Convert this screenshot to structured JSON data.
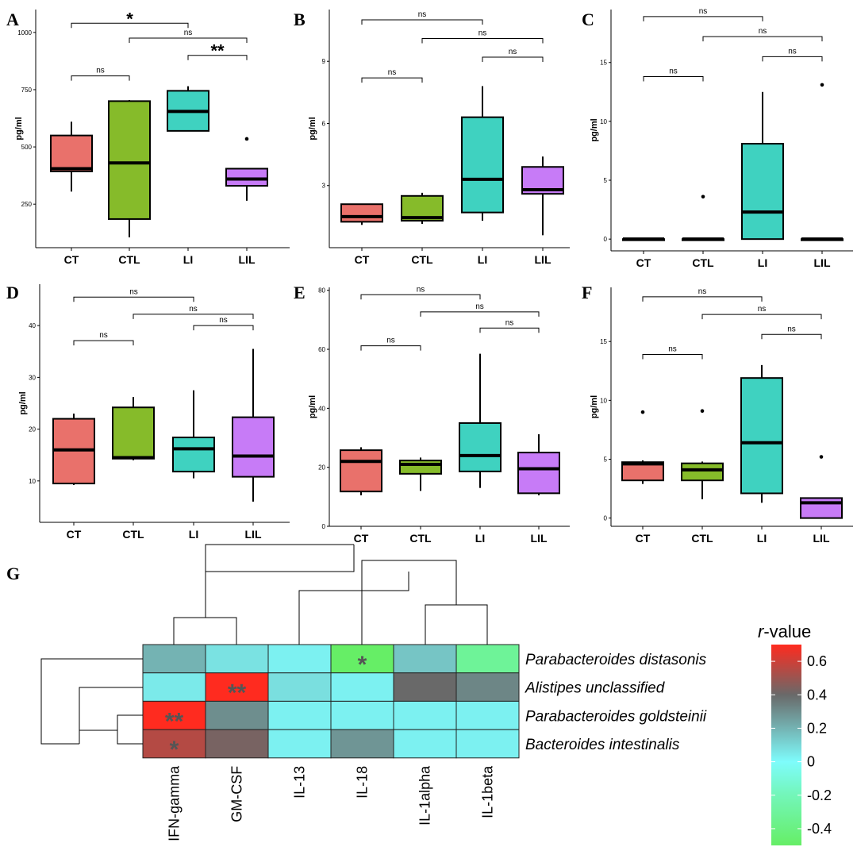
{
  "chart_data": [
    {
      "panel": "A",
      "type": "box",
      "ylabel": "pg/ml",
      "categories": [
        "CT",
        "CTL",
        "LI",
        "LIL"
      ],
      "yticks": [
        250,
        500,
        750,
        1000
      ],
      "ylim": [
        60,
        1100
      ],
      "boxes": [
        {
          "min": 305,
          "q1": 393,
          "median": 405,
          "q3": 550,
          "max": 610,
          "outliers": []
        },
        {
          "min": 105,
          "q1": 185,
          "median": 430,
          "q3": 700,
          "max": 705,
          "outliers": []
        },
        {
          "min": 570,
          "q1": 570,
          "median": 655,
          "q3": 745,
          "max": 765,
          "outliers": []
        },
        {
          "min": 265,
          "q1": 330,
          "median": 360,
          "q3": 405,
          "max": 405,
          "outliers": [
            535
          ]
        }
      ],
      "comparisons": [
        {
          "a": 0,
          "b": 2,
          "label": "*",
          "y": 1040
        },
        {
          "a": 1,
          "b": 3,
          "label": "ns",
          "y": 975
        },
        {
          "a": 2,
          "b": 3,
          "label": "**",
          "y": 900
        },
        {
          "a": 0,
          "b": 1,
          "label": "ns",
          "y": 810
        }
      ]
    },
    {
      "panel": "B",
      "type": "box",
      "ylabel": "pg/ml",
      "categories": [
        "CT",
        "CTL",
        "LI",
        "LIL"
      ],
      "yticks": [
        3,
        6,
        9
      ],
      "ylim": [
        0,
        11.5
      ],
      "boxes": [
        {
          "min": 1.1,
          "q1": 1.25,
          "median": 1.5,
          "q3": 2.1,
          "max": 2.1,
          "outliers": []
        },
        {
          "min": 1.15,
          "q1": 1.3,
          "median": 1.45,
          "q3": 2.5,
          "max": 2.65,
          "outliers": []
        },
        {
          "min": 1.3,
          "q1": 1.7,
          "median": 3.3,
          "q3": 6.3,
          "max": 7.8,
          "outliers": []
        },
        {
          "min": 0.6,
          "q1": 2.6,
          "median": 2.8,
          "q3": 3.9,
          "max": 4.4,
          "outliers": []
        }
      ],
      "comparisons": [
        {
          "a": 0,
          "b": 2,
          "label": "ns",
          "y": 11.0
        },
        {
          "a": 1,
          "b": 3,
          "label": "ns",
          "y": 10.1
        },
        {
          "a": 2,
          "b": 3,
          "label": "ns",
          "y": 9.2
        },
        {
          "a": 0,
          "b": 1,
          "label": "ns",
          "y": 8.2
        }
      ]
    },
    {
      "panel": "C",
      "type": "box",
      "ylabel": "pg/ml",
      "categories": [
        "CT",
        "CTL",
        "LI",
        "LIL"
      ],
      "yticks": [
        0,
        5,
        10,
        15
      ],
      "ylim": [
        -1,
        19.5
      ],
      "boxes": [
        {
          "min": 0,
          "q1": 0,
          "median": 0,
          "q3": 0,
          "max": 0,
          "outliers": []
        },
        {
          "min": 0,
          "q1": 0,
          "median": 0,
          "q3": 0,
          "max": 0,
          "outliers": [
            3.6
          ]
        },
        {
          "min": 0,
          "q1": 0,
          "median": 2.3,
          "q3": 8.1,
          "max": 12.5,
          "outliers": []
        },
        {
          "min": 0,
          "q1": 0,
          "median": 0,
          "q3": 0,
          "max": 0,
          "outliers": [
            13.1
          ]
        }
      ],
      "comparisons": [
        {
          "a": 0,
          "b": 2,
          "label": "ns",
          "y": 18.9
        },
        {
          "a": 1,
          "b": 3,
          "label": "ns",
          "y": 17.2
        },
        {
          "a": 2,
          "b": 3,
          "label": "ns",
          "y": 15.5
        },
        {
          "a": 0,
          "b": 1,
          "label": "ns",
          "y": 13.8
        }
      ]
    },
    {
      "panel": "D",
      "type": "box",
      "ylabel": "pg/ml",
      "categories": [
        "CT",
        "CTL",
        "LI",
        "LIL"
      ],
      "yticks": [
        10,
        20,
        30,
        40
      ],
      "ylim": [
        2,
        48
      ],
      "boxes": [
        {
          "min": 9.2,
          "q1": 9.5,
          "median": 16,
          "q3": 22,
          "max": 23,
          "outliers": []
        },
        {
          "min": 14,
          "q1": 14.3,
          "median": 14.5,
          "q3": 24.2,
          "max": 26.2,
          "outliers": []
        },
        {
          "min": 10.5,
          "q1": 11.8,
          "median": 16.2,
          "q3": 18.4,
          "max": 27.5,
          "outliers": []
        },
        {
          "min": 6,
          "q1": 10.8,
          "median": 14.8,
          "q3": 22.3,
          "max": 35.5,
          "outliers": []
        }
      ],
      "comparisons": [
        {
          "a": 0,
          "b": 2,
          "label": "ns",
          "y": 45.5
        },
        {
          "a": 1,
          "b": 3,
          "label": "ns",
          "y": 42.2
        },
        {
          "a": 2,
          "b": 3,
          "label": "ns",
          "y": 40.0
        },
        {
          "a": 0,
          "b": 1,
          "label": "ns",
          "y": 37.1
        }
      ]
    },
    {
      "panel": "E",
      "type": "box",
      "ylabel": "pg/ml",
      "categories": [
        "CT",
        "CTL",
        "LI",
        "LIL"
      ],
      "yticks": [
        0,
        20,
        40,
        60,
        80
      ],
      "ylim": [
        0,
        81
      ],
      "boxes": [
        {
          "min": 10.5,
          "q1": 11.8,
          "median": 22,
          "q3": 25.8,
          "max": 26.8,
          "outliers": []
        },
        {
          "min": 12,
          "q1": 17.8,
          "median": 21,
          "q3": 22.3,
          "max": 23.3,
          "outliers": []
        },
        {
          "min": 13,
          "q1": 18.6,
          "median": 24,
          "q3": 35,
          "max": 58.5,
          "outliers": []
        },
        {
          "min": 10.5,
          "q1": 11.2,
          "median": 19.5,
          "q3": 25,
          "max": 31.2,
          "outliers": []
        }
      ],
      "comparisons": [
        {
          "a": 0,
          "b": 2,
          "label": "ns",
          "y": 78.5
        },
        {
          "a": 1,
          "b": 3,
          "label": "ns",
          "y": 72.7
        },
        {
          "a": 2,
          "b": 3,
          "label": "ns",
          "y": 67.2
        },
        {
          "a": 0,
          "b": 1,
          "label": "ns",
          "y": 61.2
        }
      ]
    },
    {
      "panel": "F",
      "type": "box",
      "ylabel": "pg/ml",
      "categories": [
        "CT",
        "CTL",
        "LI",
        "LIL"
      ],
      "yticks": [
        0,
        5,
        10,
        15
      ],
      "ylim": [
        -0.7,
        19.6
      ],
      "boxes": [
        {
          "min": 2.9,
          "q1": 3.2,
          "median": 4.6,
          "q3": 4.75,
          "max": 4.9,
          "outliers": [
            9.0
          ]
        },
        {
          "min": 1.6,
          "q1": 3.2,
          "median": 4.1,
          "q3": 4.65,
          "max": 4.8,
          "outliers": [
            9.1
          ]
        },
        {
          "min": 1.3,
          "q1": 2.1,
          "median": 6.4,
          "q3": 11.9,
          "max": 13.0,
          "outliers": []
        },
        {
          "min": 0,
          "q1": 0,
          "median": 1.3,
          "q3": 1.7,
          "max": 1.7,
          "outliers": [
            5.2
          ]
        }
      ],
      "comparisons": [
        {
          "a": 0,
          "b": 2,
          "label": "ns",
          "y": 18.8
        },
        {
          "a": 1,
          "b": 3,
          "label": "ns",
          "y": 17.3
        },
        {
          "a": 2,
          "b": 3,
          "label": "ns",
          "y": 15.6
        },
        {
          "a": 0,
          "b": 1,
          "label": "ns",
          "y": 13.9
        }
      ]
    },
    {
      "panel": "G",
      "type": "heatmap",
      "columns": [
        "IFN-gamma",
        "GM-CSF",
        "IL-13",
        "IL-18",
        "IL-1alpha",
        "IL-1beta"
      ],
      "rows": [
        "Parabacteroides distasonis",
        "Alistipes unclassified",
        "Parabacteroides goldsteinii",
        "Bacteroides intestinalis"
      ],
      "values": [
        [
          0.2,
          0.07,
          0.03,
          -0.45,
          0.15,
          -0.3
        ],
        [
          0.05,
          0.6,
          0.08,
          0.03,
          0.4,
          0.32
        ],
        [
          0.6,
          0.3,
          0.03,
          0.03,
          0.03,
          0.03
        ],
        [
          0.5,
          0.42,
          0.03,
          0.28,
          0.03,
          0.03
        ]
      ],
      "stars": [
        [
          "",
          "",
          "",
          "*",
          "",
          ""
        ],
        [
          "",
          "**",
          "",
          "",
          "",
          ""
        ],
        [
          "**",
          "",
          "",
          "",
          "",
          ""
        ],
        [
          "*",
          "",
          "",
          "",
          "",
          ""
        ]
      ],
      "legend": {
        "title_italic": "r",
        "title_rest": "-value",
        "ticks": [
          0.6,
          0.4,
          0.2,
          0,
          -0.2,
          -0.4
        ],
        "range": [
          -0.5,
          0.7
        ]
      }
    }
  ],
  "colors": {
    "CT": "#e9716b",
    "CTL": "#86bb2a",
    "LI": "#3fd2c0",
    "LIL": "#c77bf7"
  },
  "heatmap_colors": {
    "neg": "#66ee66",
    "zero": "#7efcfc",
    "mid": "#696969",
    "pos": "#ff2b1f"
  }
}
